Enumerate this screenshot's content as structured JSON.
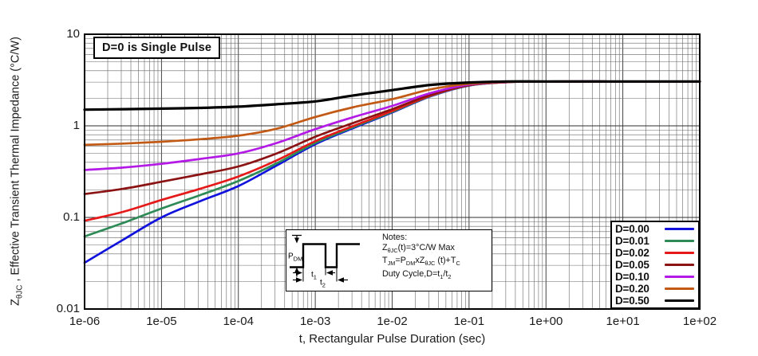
{
  "figure": {
    "annotation": "D=0 is Single Pulse",
    "xlabel": "t, Rectangular Pulse Duration (sec)",
    "ylabel": {
      "prefix": "Z",
      "sub": "θJC",
      "rest": " , Effective Transient Thermal Impedance (°C/W)"
    }
  },
  "notes": {
    "title": "Notes:",
    "line1": {
      "p1": "Z",
      "s1": "θJC",
      "p2": "(t)=3°C/W Max"
    },
    "line2": {
      "p1": "T",
      "s1": "JM",
      "p2": "=P",
      "s2": "DM",
      "p3": "xZ",
      "s3": "θJC",
      "p4": " (t)+T",
      "s4": "C"
    },
    "line3": {
      "p1": "Duty Cycle,D=t",
      "s1": "1",
      "p2": "/t",
      "s2": "2"
    },
    "diagram": {
      "p_label": {
        "p": "P",
        "sub": "DM"
      },
      "t1": {
        "p": "t",
        "sub": "1"
      },
      "t2": {
        "p": "t",
        "sub": "2"
      }
    }
  },
  "chart_data": {
    "type": "line",
    "x_scale": "log",
    "y_scale": "log",
    "xlim": [
      1e-06,
      100
    ],
    "ylim": [
      0.01,
      10
    ],
    "xlabel": "t, Rectangular Pulse Duration (sec)",
    "ylabel": "Z0JC , Effective Transient Thermal Impedance (C/W)",
    "grid": "log major + minor, all four sides framed",
    "legend_position": "bottom-right",
    "annotation": "D=0 is Single Pulse",
    "z_max_note": "ZthJC(t) = 3 C/W Max, curves converge to ~3 for t > 0.1 s",
    "xtick_values": [
      1e-06,
      1e-05,
      0.0001,
      0.001,
      0.01,
      0.1,
      1,
      10,
      100
    ],
    "xtick_labels": [
      "1e-06",
      "1e-05",
      "1e-04",
      "1e-03",
      "1e-02",
      "1e-01",
      "1e+00",
      "1e+01",
      "1e+02"
    ],
    "ytick_values": [
      10,
      1,
      0.1,
      0.01
    ],
    "ytick_labels": [
      "10",
      "1",
      "0.1",
      "0.01"
    ],
    "x": [
      1e-06,
      3.16e-06,
      1e-05,
      3.16e-05,
      0.0001,
      0.000316,
      0.001,
      0.00316,
      0.01,
      0.0316,
      0.1,
      0.316,
      1,
      10,
      100
    ],
    "series": [
      {
        "label": "D=0.00",
        "duty": 0.0,
        "color": "#1212dd",
        "values": [
          0.032,
          0.057,
          0.1,
          0.15,
          0.22,
          0.37,
          0.63,
          0.95,
          1.4,
          2.1,
          2.75,
          3.0,
          3.05,
          3.05,
          3.05
        ]
      },
      {
        "label": "D=0.01",
        "duty": 0.01,
        "color": "#2e8b57",
        "values": [
          0.062,
          0.087,
          0.125,
          0.175,
          0.25,
          0.39,
          0.65,
          0.97,
          1.42,
          2.12,
          2.76,
          3.0,
          3.05,
          3.05,
          3.05
        ]
      },
      {
        "label": "D=0.02",
        "duty": 0.02,
        "color": "#e51919",
        "values": [
          0.092,
          0.115,
          0.155,
          0.205,
          0.28,
          0.42,
          0.68,
          1.0,
          1.45,
          2.14,
          2.77,
          3.0,
          3.05,
          3.05,
          3.05
        ]
      },
      {
        "label": "D=0.05",
        "duty": 0.05,
        "color": "#8b1313",
        "values": [
          0.18,
          0.205,
          0.245,
          0.295,
          0.36,
          0.5,
          0.76,
          1.08,
          1.52,
          2.18,
          2.79,
          3.01,
          3.05,
          3.05,
          3.05
        ]
      },
      {
        "label": "D=0.10",
        "duty": 0.1,
        "color": "#b31ae6",
        "values": [
          0.33,
          0.35,
          0.385,
          0.435,
          0.5,
          0.65,
          0.92,
          1.25,
          1.65,
          2.28,
          2.82,
          3.02,
          3.05,
          3.05,
          3.05
        ]
      },
      {
        "label": "D=0.20",
        "duty": 0.2,
        "color": "#c25a15",
        "values": [
          0.62,
          0.64,
          0.67,
          0.715,
          0.78,
          0.93,
          1.25,
          1.6,
          1.95,
          2.5,
          2.88,
          3.03,
          3.05,
          3.05,
          3.05
        ]
      },
      {
        "label": "D=0.50",
        "duty": 0.5,
        "color": "#000000",
        "values": [
          1.5,
          1.52,
          1.54,
          1.57,
          1.62,
          1.72,
          1.85,
          2.15,
          2.45,
          2.8,
          2.97,
          3.05,
          3.05,
          3.05,
          3.05
        ]
      }
    ]
  }
}
